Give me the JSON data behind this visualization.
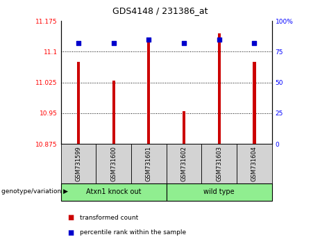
{
  "title": "GDS4148 / 231386_at",
  "samples": [
    "GSM731599",
    "GSM731600",
    "GSM731601",
    "GSM731602",
    "GSM731603",
    "GSM731604"
  ],
  "bar_values": [
    11.075,
    11.03,
    11.13,
    10.955,
    11.145,
    11.075
  ],
  "percentile_values": [
    82,
    82,
    85,
    82,
    85,
    82
  ],
  "bar_color": "#cc0000",
  "dot_color": "#0000cc",
  "ylim_left": [
    10.875,
    11.175
  ],
  "ylim_right": [
    0,
    100
  ],
  "yticks_left": [
    10.875,
    10.95,
    11.025,
    11.1,
    11.175
  ],
  "ytick_labels_left": [
    "10.875",
    "10.95",
    "11.025",
    "11.1",
    "11.175"
  ],
  "yticks_right": [
    0,
    25,
    50,
    75,
    100
  ],
  "ytick_labels_right": [
    "0",
    "25",
    "50",
    "75",
    "100%"
  ],
  "grid_yticks": [
    11.1,
    11.025,
    10.95
  ],
  "xlabel_area_color": "#d3d3d3",
  "group_box_color": "#90ee90",
  "legend": [
    {
      "color": "#cc0000",
      "label": "transformed count"
    },
    {
      "color": "#0000cc",
      "label": "percentile rank within the sample"
    }
  ],
  "bar_width": 0.08
}
